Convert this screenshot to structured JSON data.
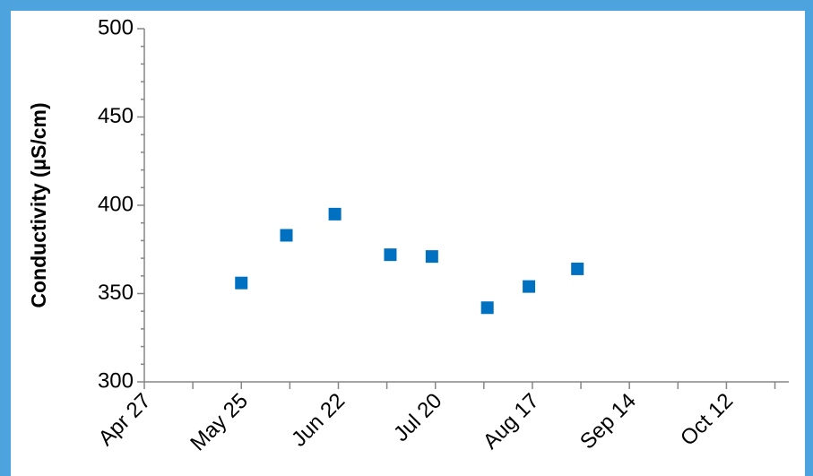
{
  "chart_data": {
    "type": "scatter",
    "y_label": "Conductivity (µS/cm)",
    "x": [
      "May 25",
      "Jun 7",
      "Jun 21",
      "Jul 7",
      "Jul 19",
      "Aug 4",
      "Aug 16",
      "Aug 30"
    ],
    "values": [
      356,
      383,
      395,
      372,
      371,
      342,
      354,
      364
    ],
    "color": "#0070c0",
    "xlim": [
      "Apr 27",
      "Oct 30"
    ],
    "xticks": [
      "Apr 27",
      "May 25",
      "Jun 22",
      "Jul 20",
      "Aug 17",
      "Sep 14",
      "Oct 12"
    ],
    "xminor_ticks": [
      "May 11",
      "Jun 8",
      "Jul 6",
      "Aug 3",
      "Aug 31",
      "Sep 28",
      "Oct 26"
    ],
    "ylim": [
      300,
      500
    ],
    "yticks": [
      300,
      350,
      400,
      450,
      500
    ],
    "yminor_ticks": [
      310,
      320,
      330,
      340,
      360,
      370,
      380,
      390,
      410,
      420,
      430,
      440,
      460,
      470,
      480,
      490
    ]
  }
}
